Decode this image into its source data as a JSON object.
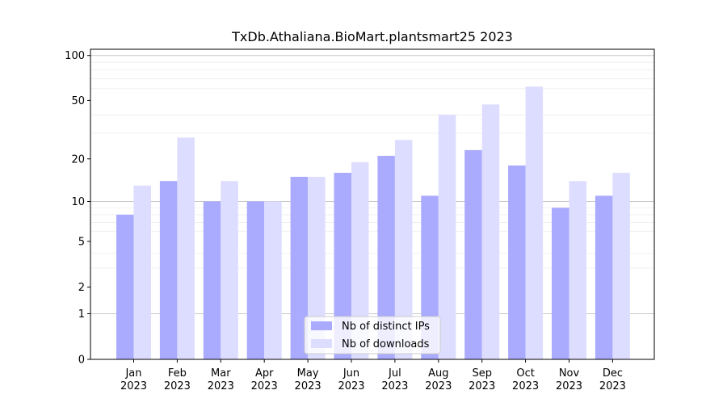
{
  "chart_data": {
    "type": "bar",
    "title": "TxDb.Athaliana.BioMart.plantsmart25 2023",
    "xlabel": "",
    "ylabel": "",
    "yscale": "log(1+y)",
    "ylim": [
      0,
      110
    ],
    "yticks": [
      0,
      1,
      2,
      5,
      10,
      20,
      50,
      100
    ],
    "ytick_labels": [
      "0",
      "1",
      "2",
      "5",
      "10",
      "20",
      "50",
      "100"
    ],
    "grid": true,
    "legend_position": "bottom-center",
    "categories": [
      "Jan\n2023",
      "Feb\n2023",
      "Mar\n2023",
      "Apr\n2023",
      "May\n2023",
      "Jun\n2023",
      "Jul\n2023",
      "Aug\n2023",
      "Sep\n2023",
      "Oct\n2023",
      "Nov\n2023",
      "Dec\n2023"
    ],
    "category_months": [
      "Jan",
      "Feb",
      "Mar",
      "Apr",
      "May",
      "Jun",
      "Jul",
      "Aug",
      "Sep",
      "Oct",
      "Nov",
      "Dec"
    ],
    "category_years": [
      "2023",
      "2023",
      "2023",
      "2023",
      "2023",
      "2023",
      "2023",
      "2023",
      "2023",
      "2023",
      "2023",
      "2023"
    ],
    "series": [
      {
        "name": "Nb of distinct IPs",
        "color": "#aaaaff",
        "values": [
          8,
          14,
          10,
          10,
          15,
          16,
          21,
          11,
          23,
          18,
          9,
          11
        ]
      },
      {
        "name": "Nb of downloads",
        "color": "#ddddff",
        "values": [
          13,
          28,
          14,
          10,
          15,
          19,
          27,
          40,
          47,
          62,
          14,
          16
        ]
      }
    ]
  }
}
